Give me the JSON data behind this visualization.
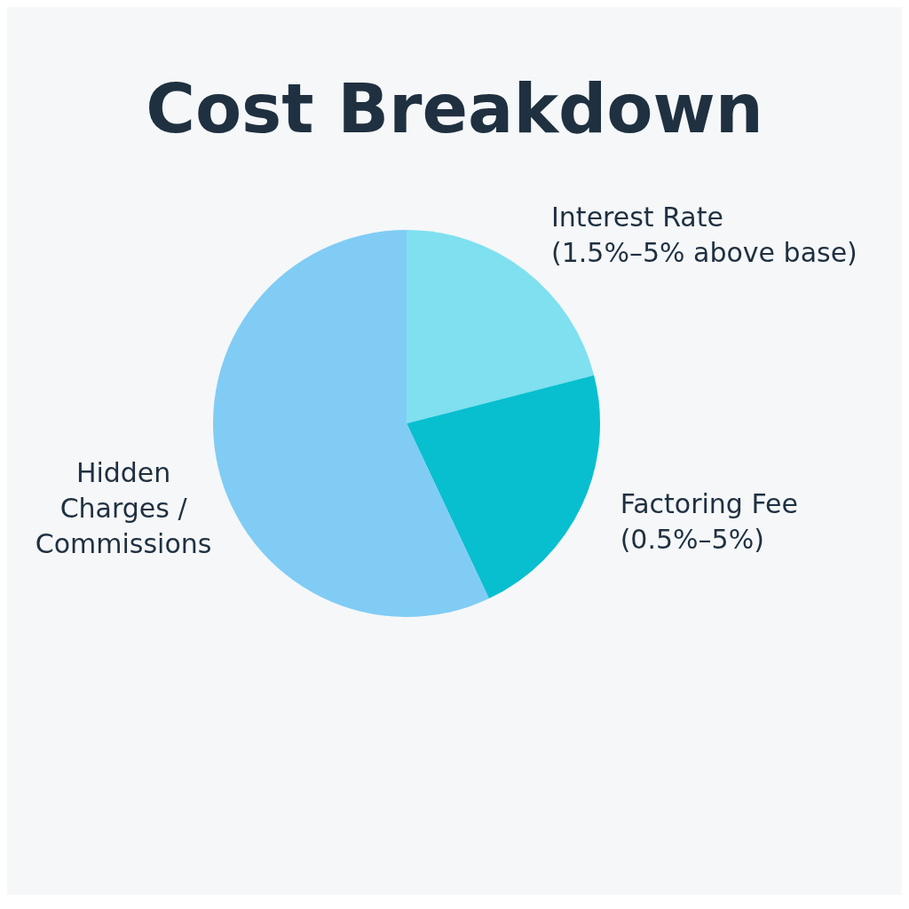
{
  "chart_data": {
    "type": "pie",
    "title": "Cost Breakdown",
    "categories": [
      "Interest Rate\n(1.5%–5% above base)",
      "Factoring Fee\n(0.5%–5%)",
      "Hidden\nCharges /\nCommissions"
    ],
    "values": [
      21,
      22,
      57
    ],
    "colors": [
      "#7fe0ef",
      "#08bfcf",
      "#80ccf4"
    ],
    "legend": false
  }
}
